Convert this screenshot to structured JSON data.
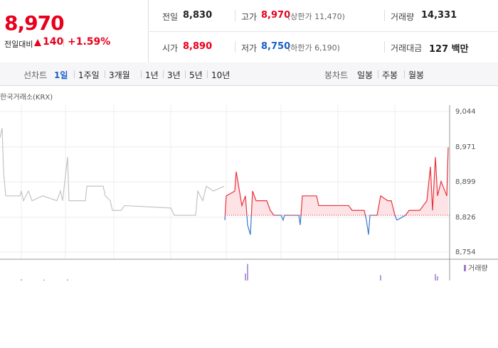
{
  "quote": {
    "price": "8,970",
    "change_label": "전일대비",
    "change": "140",
    "change_rate": "+1.59%",
    "stats": [
      {
        "label": "전일",
        "value": "8,830"
      },
      {
        "label": "고가",
        "value": "8,970",
        "note": "(상한가 11,470)"
      },
      {
        "label": "거래량",
        "value": "14,331"
      },
      {
        "label": "시가",
        "value": "8,890"
      },
      {
        "label": "저가",
        "value": "8,750",
        "note": "(하한가 6,190)"
      },
      {
        "label": "거래대금",
        "value": "127 백만"
      }
    ]
  },
  "tabs": {
    "line_label": "선차트",
    "line": [
      "1일",
      "1주일",
      "3개월",
      "1년",
      "3년",
      "5년",
      "10년"
    ],
    "candle_label": "봉차트",
    "candle": [
      "일봉",
      "주봉",
      "월봉"
    ]
  },
  "chart_data": {
    "type": "line",
    "source": "한국거래소(KRX)",
    "xlim": [
      0,
      632
    ],
    "ylim": [
      8754,
      9044
    ],
    "yticks": [
      {
        "value": 8754,
        "label": "8,754"
      },
      {
        "value": 8826,
        "label": "8,826"
      },
      {
        "value": 8899,
        "label": "8,899"
      },
      {
        "value": 8971,
        "label": "8,971"
      },
      {
        "value": 9044,
        "label": "9,044"
      }
    ],
    "reference": 8830,
    "series": [
      {
        "color": "#c4c4c4",
        "x": [
          0,
          3,
          5,
          8,
          28,
          30,
          33,
          40,
          45,
          60,
          80,
          85,
          88,
          95,
          97,
          120,
          122,
          145,
          148,
          155,
          158,
          170,
          175,
          240,
          245,
          275,
          278,
          285,
          290,
          300,
          315
        ],
        "values": [
          8990,
          9010,
          8920,
          8870,
          8870,
          8880,
          8860,
          8880,
          8860,
          8870,
          8860,
          8880,
          8860,
          8950,
          8860,
          8860,
          8890,
          8890,
          8870,
          8860,
          8840,
          8840,
          8850,
          8845,
          8830,
          8830,
          8880,
          8860,
          8890,
          8880,
          8890
        ]
      },
      {
        "color": "#e8323c",
        "down_color": "#3a78d0",
        "fill": "#fde3e6",
        "x": [
          316,
          318,
          330,
          332,
          340,
          345,
          348,
          352,
          355,
          360,
          375,
          380,
          385,
          395,
          398,
          400,
          420,
          422,
          425,
          445,
          448,
          490,
          495,
          512,
          515,
          518,
          520,
          530,
          535,
          545,
          550,
          555,
          558,
          570,
          575,
          590,
          595,
          600,
          605,
          608,
          612,
          615,
          620,
          628,
          630
        ],
        "values": [
          8820,
          8870,
          8880,
          8920,
          8850,
          8870,
          8810,
          8790,
          8880,
          8860,
          8860,
          8840,
          8830,
          8830,
          8820,
          8830,
          8830,
          8810,
          8870,
          8870,
          8850,
          8850,
          8840,
          8840,
          8820,
          8790,
          8830,
          8830,
          8870,
          8860,
          8860,
          8830,
          8820,
          8830,
          8840,
          8840,
          8850,
          8860,
          8930,
          8840,
          8950,
          8870,
          8900,
          8870,
          8970
        ]
      }
    ],
    "volume": {
      "name": "거래량",
      "color": "#9b7bd0",
      "ylim": [
        0,
        3000
      ],
      "x": [
        30,
        62,
        95,
        345,
        348,
        535,
        612,
        615
      ],
      "values": [
        200,
        150,
        180,
        1200,
        2800,
        900,
        1100,
        700
      ]
    }
  }
}
